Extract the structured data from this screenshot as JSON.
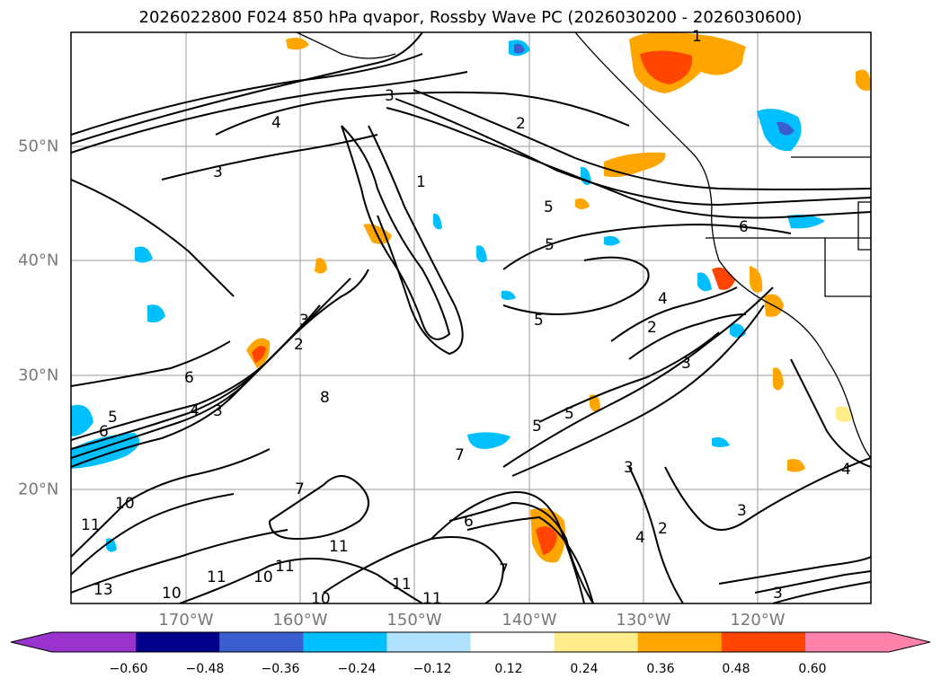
{
  "title": "2026022800 F024 850 hPa qvapor, Rossby Wave PC (2026030200 - 2026030600)",
  "lon_labels": [
    "170°W",
    "160°W",
    "150°W",
    "140°W",
    "130°W",
    "120°W"
  ],
  "lat_labels": [
    "50°N",
    "40°N",
    "30°N",
    "20°N"
  ],
  "colorbar": {
    "ticks": [
      "−0.60",
      "−0.48",
      "−0.36",
      "−0.24",
      "−0.12",
      "0.12",
      "0.24",
      "0.36",
      "0.48",
      "0.60"
    ],
    "colors": [
      "#9a32cd",
      "#00008b",
      "#3a5fcd",
      "#00bfff",
      "#b0e2ff",
      "#ffffff",
      "#ffec8b",
      "#ffa500",
      "#ff4500",
      "#b22222",
      "#ff82ab"
    ]
  },
  "contour_labels": [
    {
      "text": "1"
    },
    {
      "text": "2"
    },
    {
      "text": "3"
    },
    {
      "text": "4"
    },
    {
      "text": "5"
    },
    {
      "text": "6"
    },
    {
      "text": "7"
    },
    {
      "text": "8"
    },
    {
      "text": "10"
    },
    {
      "text": "11"
    },
    {
      "text": "13"
    }
  ]
}
